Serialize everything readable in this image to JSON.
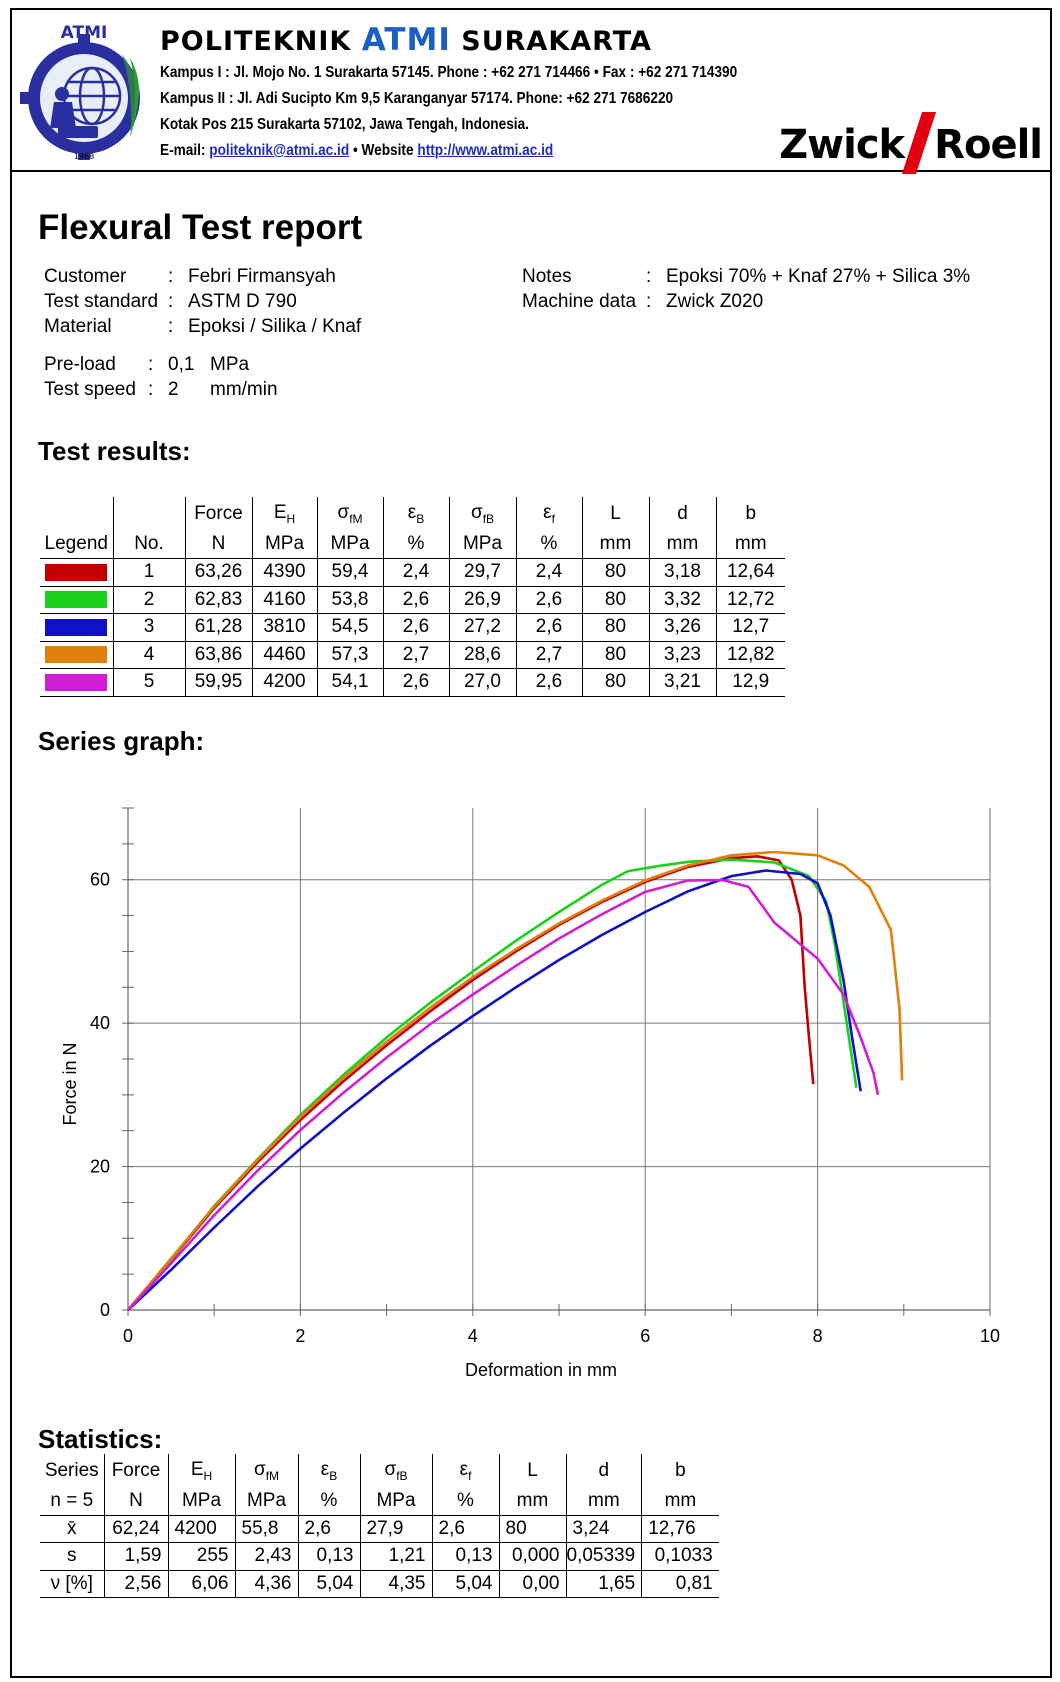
{
  "header": {
    "logo_text": "ATMI",
    "logo_year": "1968",
    "institution_pre": "POLITEKNIK ",
    "institution_accent": "ATMI",
    "institution_post": " SURAKARTA",
    "line1": "Kampus I : Jl. Mojo No. 1 Surakarta 57145.  Phone : +62 271 714466  •  Fax : +62 271 714390",
    "line2": "Kampus II : Jl. Adi Sucipto Km 9,5 Karanganyar 57174.  Phone: +62 271 7686220",
    "line3": "Kotak Pos 215  Surakarta 57102, Jawa Tengah, Indonesia.",
    "email_label": "E-mail: ",
    "email": "politeknik@atmi.ac.id",
    "website_label": "  •  Website ",
    "website": "http://www.atmi.ac.id",
    "brand_left": "Zwick",
    "brand_right": "Roell",
    "brand_color": "#e2000f"
  },
  "title": "Flexural Test report",
  "meta": {
    "customer_label": "Customer",
    "customer": "Febri Firmansyah",
    "standard_label": "Test standard",
    "standard": "ASTM D 790",
    "material_label": "Material",
    "material": "Epoksi / Silika / Knaf",
    "notes_label": "Notes",
    "notes": "Epoksi 70% + Knaf 27% + Silica 3%",
    "machine_label": "Machine data",
    "machine": "Zwick Z020",
    "preload_label": "Pre-load",
    "preload_value": "0,1",
    "preload_unit": "MPa",
    "speed_label": "Test speed",
    "speed_value": "2",
    "speed_unit": "mm/min",
    "sep": ":"
  },
  "results": {
    "heading": "Test results:",
    "col_legend": "Legend",
    "col_no": "No.",
    "symbols": [
      "Force",
      "E",
      "σ",
      "ε",
      "σ",
      "ε",
      "L",
      "d",
      "b"
    ],
    "subs": [
      "",
      "H",
      "fM",
      "B",
      "fB",
      "f",
      "",
      "",
      ""
    ],
    "units": [
      "N",
      "MPa",
      "MPa",
      "%",
      "MPa",
      "%",
      "mm",
      "mm",
      "mm"
    ],
    "rows": [
      {
        "color": "#c00000",
        "no": "1",
        "cells": [
          "63,26",
          "4390",
          "59,4",
          "2,4",
          "29,7",
          "2,4",
          "80",
          "3,18",
          "12,64"
        ]
      },
      {
        "color": "#1ad11a",
        "no": "2",
        "cells": [
          "62,83",
          "4160",
          "53,8",
          "2,6",
          "26,9",
          "2,6",
          "80",
          "3,32",
          "12,72"
        ]
      },
      {
        "color": "#1010c8",
        "no": "3",
        "cells": [
          "61,28",
          "3810",
          "54,5",
          "2,6",
          "27,2",
          "2,6",
          "80",
          "3,26",
          "12,7"
        ]
      },
      {
        "color": "#e0800a",
        "no": "4",
        "cells": [
          "63,86",
          "4460",
          "57,3",
          "2,7",
          "28,6",
          "2,7",
          "80",
          "3,23",
          "12,82"
        ]
      },
      {
        "color": "#d21ed2",
        "no": "5",
        "cells": [
          "59,95",
          "4200",
          "54,1",
          "2,6",
          "27,0",
          "2,6",
          "80",
          "3,21",
          "12,9"
        ]
      }
    ]
  },
  "chart_data": {
    "type": "line",
    "title": "Series graph:",
    "xlabel": "Deformation in mm",
    "ylabel": "Force in N",
    "xlim": [
      0,
      10
    ],
    "ylim": [
      0,
      70
    ],
    "xticks": [
      "0",
      "2",
      "4",
      "6",
      "8",
      "10"
    ],
    "yticks": [
      "0",
      "20",
      "40",
      "60"
    ],
    "grid": true,
    "series": [
      {
        "color": "#c00000",
        "x": [
          0,
          0.5,
          1,
          1.5,
          2,
          2.5,
          3,
          3.5,
          4,
          4.5,
          5,
          5.5,
          6,
          6.5,
          7,
          7.3,
          7.55,
          7.7,
          7.8,
          7.85,
          7.9,
          7.95
        ],
        "y": [
          0,
          7,
          14.2,
          20.6,
          26.5,
          31.9,
          36.9,
          41.6,
          46,
          50,
          53.7,
          56.9,
          59.7,
          61.8,
          63,
          63.26,
          62.7,
          60,
          55,
          45,
          38,
          31.5
        ]
      },
      {
        "color": "#1ad11a",
        "x": [
          0,
          0.5,
          1,
          1.5,
          2,
          2.5,
          3,
          3.5,
          4,
          4.5,
          5,
          5.5,
          5.8,
          6.2,
          6.5,
          7,
          7.5,
          7.9,
          8.1,
          8.2,
          8.3,
          8.4,
          8.45
        ],
        "y": [
          0,
          7.1,
          14.5,
          21,
          27.2,
          32.8,
          38,
          42.8,
          47.2,
          51.5,
          55.5,
          59.3,
          61.2,
          62,
          62.5,
          62.8,
          62.4,
          60.5,
          57,
          51,
          43,
          35,
          31
        ]
      },
      {
        "color": "#1010c8",
        "x": [
          0,
          0.5,
          1,
          1.5,
          2,
          2.5,
          3,
          3.5,
          4,
          4.5,
          5,
          5.5,
          6,
          6.5,
          7,
          7.4,
          7.8,
          8.0,
          8.15,
          8.3,
          8.4,
          8.5
        ],
        "y": [
          0,
          5.6,
          11.5,
          17.2,
          22.5,
          27.5,
          32.3,
          36.8,
          41,
          45,
          48.8,
          52.3,
          55.5,
          58.4,
          60.5,
          61.28,
          60.8,
          59.5,
          55,
          46,
          38,
          30.5
        ]
      },
      {
        "color": "#e0800a",
        "x": [
          0,
          0.5,
          1,
          1.5,
          2,
          2.5,
          3,
          3.5,
          4,
          4.5,
          5,
          5.5,
          6,
          6.5,
          7,
          7.5,
          8,
          8.3,
          8.6,
          8.85,
          8.95,
          8.98
        ],
        "y": [
          0,
          7.2,
          14.4,
          20.9,
          26.9,
          32.4,
          37.4,
          42.1,
          46.4,
          50.3,
          53.9,
          57.1,
          59.9,
          62,
          63.4,
          63.86,
          63.4,
          62,
          59,
          53,
          42,
          32
        ]
      },
      {
        "color": "#d21ed2",
        "x": [
          0,
          0.5,
          1,
          1.5,
          2,
          2.5,
          3,
          3.5,
          4,
          4.5,
          5,
          5.5,
          6,
          6.5,
          6.9,
          7.2,
          7.5,
          8.0,
          8.3,
          8.5,
          8.65,
          8.7
        ],
        "y": [
          0,
          6.5,
          13.2,
          19.4,
          25.1,
          30.3,
          35.2,
          39.8,
          44,
          48,
          51.8,
          55.2,
          58.3,
          59.9,
          59.95,
          59,
          54,
          49,
          44,
          38,
          33,
          30
        ]
      }
    ]
  },
  "statistics": {
    "heading": "Statistics:",
    "col_series": "Series",
    "col_n": "n = 5",
    "symbols": [
      "Force",
      "E",
      "σ",
      "ε",
      "σ",
      "ε",
      "L",
      "d",
      "b"
    ],
    "subs": [
      "",
      "H",
      "fM",
      "B",
      "fB",
      "f",
      "",
      "",
      ""
    ],
    "units": [
      "N",
      "MPa",
      "MPa",
      "%",
      "MPa",
      "%",
      "mm",
      "mm",
      "mm"
    ],
    "rows": [
      {
        "label": "x̄",
        "cells": [
          "62,24",
          "4200",
          "55,8",
          "2,6",
          "27,9",
          "2,6",
          "80",
          "3,24",
          "12,76"
        ]
      },
      {
        "label": "s",
        "cells": [
          "1,59",
          "255",
          "2,43",
          "0,13",
          "1,21",
          "0,13",
          "0,000",
          "0,05339",
          "0,1033"
        ]
      },
      {
        "label": "ν [%]",
        "cells": [
          "2,56",
          "6,06",
          "4,36",
          "5,04",
          "4,35",
          "5,04",
          "0,00",
          "1,65",
          "0,81"
        ]
      }
    ]
  }
}
